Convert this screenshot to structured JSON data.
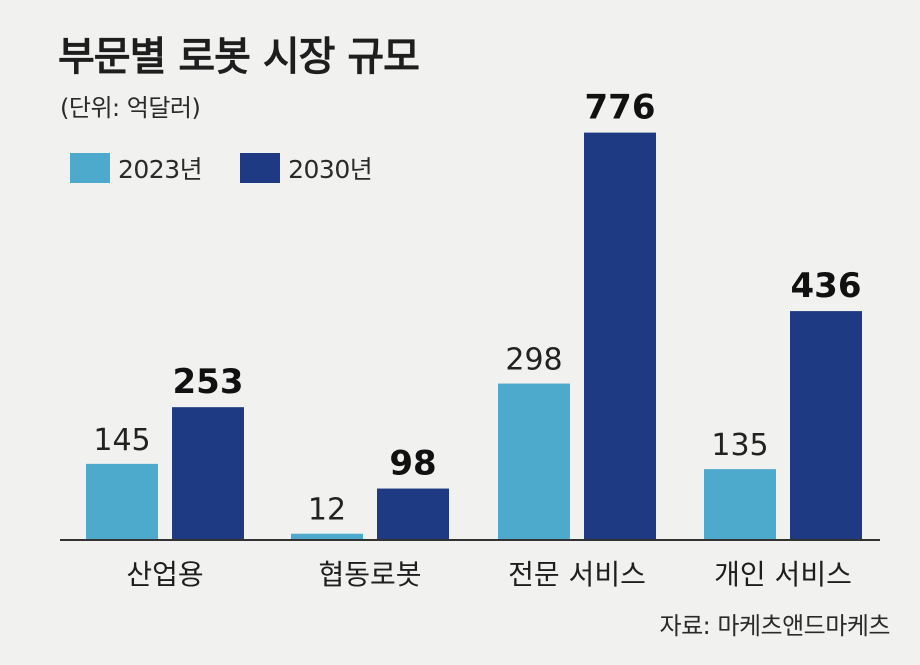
{
  "title": "부문별 로봇 시장 규모",
  "unit_note": "(단위: 억달러)",
  "source": "자료: 마케츠앤드마케츠",
  "colors": {
    "series_2023": "#4eaacc",
    "series_2030": "#1e3a82",
    "axis": "#333333"
  },
  "chart_data": {
    "type": "bar",
    "categories": [
      "산업용",
      "협동로봇",
      "전문 서비스",
      "개인 서비스"
    ],
    "series": [
      {
        "name": "2023년",
        "values": [
          145,
          12,
          298,
          135
        ],
        "value_labels": [
          "145",
          "12",
          "298",
          "135"
        ]
      },
      {
        "name": "2030년",
        "values": [
          253,
          98,
          776,
          436
        ],
        "value_labels": [
          "253",
          "98",
          "776",
          "436"
        ]
      }
    ],
    "ylim": [
      0,
      800
    ],
    "grid": false,
    "legend_position": "top-left"
  }
}
